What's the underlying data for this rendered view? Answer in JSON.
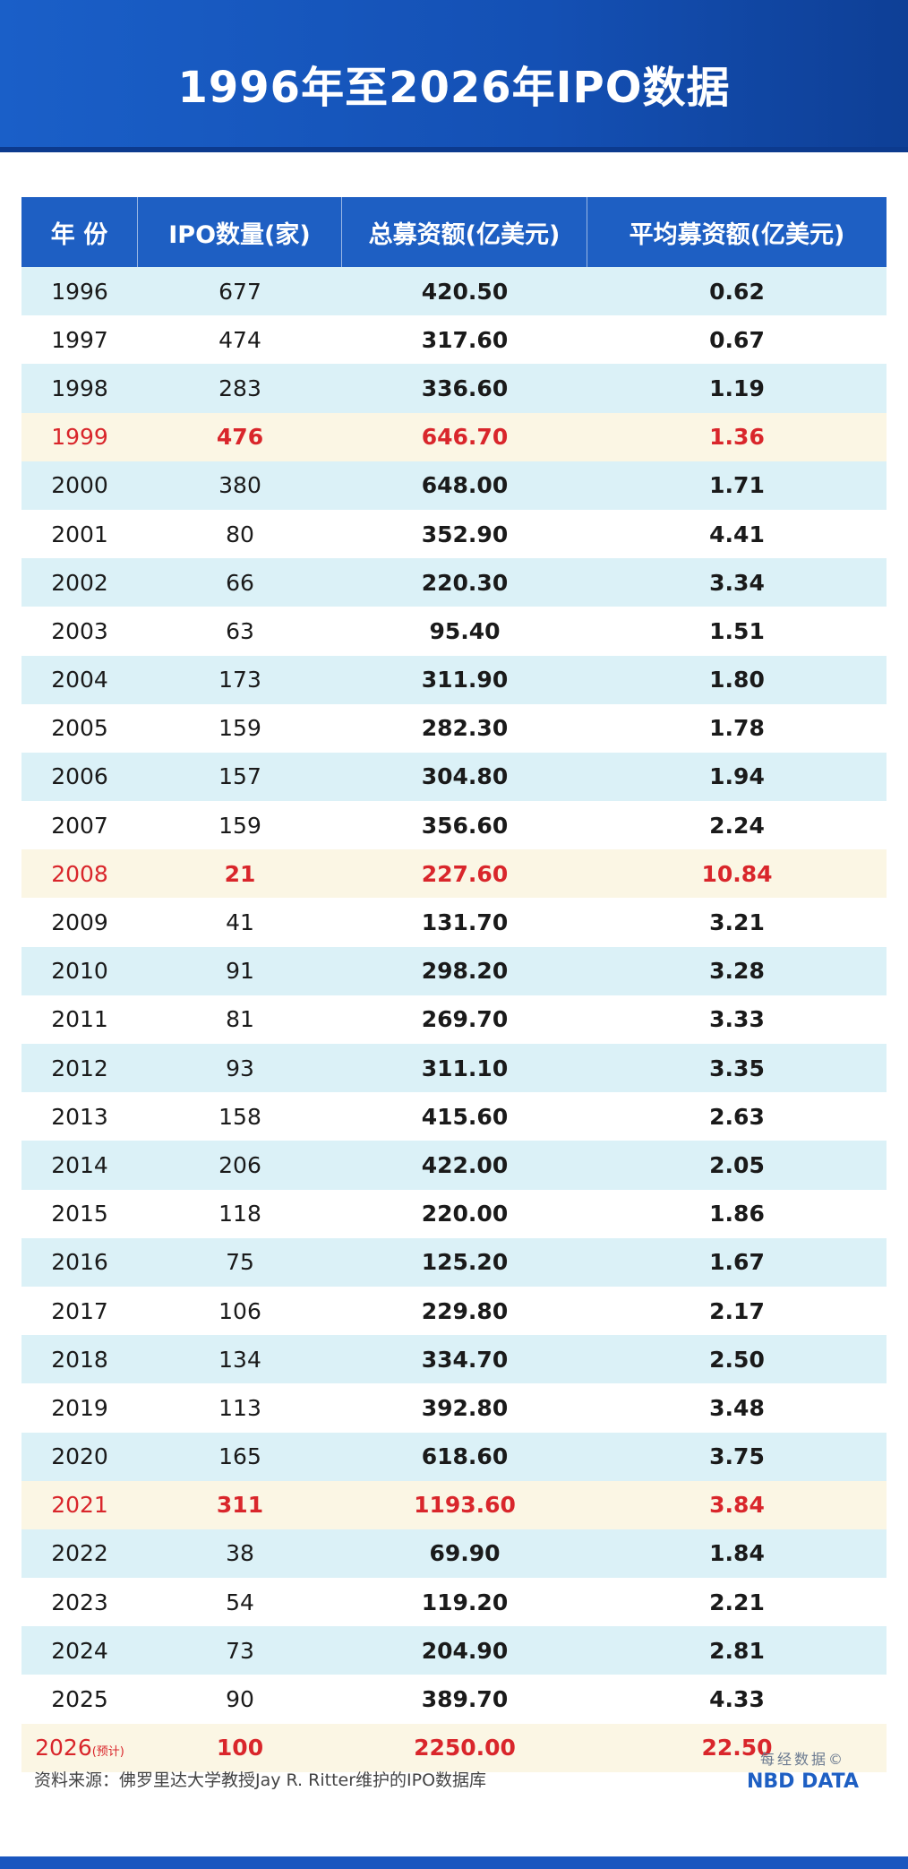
{
  "title": "1996年至2026年IPO数据",
  "headers": [
    "年 份",
    "IPO数量(家)",
    "总募资额(亿美元)",
    "平均募资额(亿美元)"
  ],
  "rows": [
    {
      "year": "1996",
      "count": "677",
      "total": "420.50",
      "avg": "0.62"
    },
    {
      "year": "1997",
      "count": "474",
      "total": "317.60",
      "avg": "0.67"
    },
    {
      "year": "1998",
      "count": "283",
      "total": "336.60",
      "avg": "1.19"
    },
    {
      "year": "1999",
      "count": "476",
      "total": "646.70",
      "avg": "1.36",
      "highlight": true
    },
    {
      "year": "2000",
      "count": "380",
      "total": "648.00",
      "avg": "1.71"
    },
    {
      "year": "2001",
      "count": "80",
      "total": "352.90",
      "avg": "4.41"
    },
    {
      "year": "2002",
      "count": "66",
      "total": "220.30",
      "avg": "3.34"
    },
    {
      "year": "2003",
      "count": "63",
      "total": "95.40",
      "avg": "1.51"
    },
    {
      "year": "2004",
      "count": "173",
      "total": "311.90",
      "avg": "1.80"
    },
    {
      "year": "2005",
      "count": "159",
      "total": "282.30",
      "avg": "1.78"
    },
    {
      "year": "2006",
      "count": "157",
      "total": "304.80",
      "avg": "1.94"
    },
    {
      "year": "2007",
      "count": "159",
      "total": "356.60",
      "avg": "2.24"
    },
    {
      "year": "2008",
      "count": "21",
      "total": "227.60",
      "avg": "10.84",
      "highlight": true
    },
    {
      "year": "2009",
      "count": "41",
      "total": "131.70",
      "avg": "3.21"
    },
    {
      "year": "2010",
      "count": "91",
      "total": "298.20",
      "avg": "3.28"
    },
    {
      "year": "2011",
      "count": "81",
      "total": "269.70",
      "avg": "3.33"
    },
    {
      "year": "2012",
      "count": "93",
      "total": "311.10",
      "avg": "3.35"
    },
    {
      "year": "2013",
      "count": "158",
      "total": "415.60",
      "avg": "2.63"
    },
    {
      "year": "2014",
      "count": "206",
      "total": "422.00",
      "avg": "2.05"
    },
    {
      "year": "2015",
      "count": "118",
      "total": "220.00",
      "avg": "1.86"
    },
    {
      "year": "2016",
      "count": "75",
      "total": "125.20",
      "avg": "1.67"
    },
    {
      "year": "2017",
      "count": "106",
      "total": "229.80",
      "avg": "2.17"
    },
    {
      "year": "2018",
      "count": "134",
      "total": "334.70",
      "avg": "2.50"
    },
    {
      "year": "2019",
      "count": "113",
      "total": "392.80",
      "avg": "3.48"
    },
    {
      "year": "2020",
      "count": "165",
      "total": "618.60",
      "avg": "3.75"
    },
    {
      "year": "2021",
      "count": "311",
      "total": "1193.60",
      "avg": "3.84",
      "highlight": true
    },
    {
      "year": "2022",
      "count": "38",
      "total": "69.90",
      "avg": "1.84"
    },
    {
      "year": "2023",
      "count": "54",
      "total": "119.20",
      "avg": "2.21"
    },
    {
      "year": "2024",
      "count": "73",
      "total": "204.90",
      "avg": "2.81"
    },
    {
      "year": "2025",
      "count": "90",
      "total": "389.70",
      "avg": "4.33"
    },
    {
      "year": "2026",
      "note": "(预计)",
      "count": "100",
      "total": "2250.00",
      "avg": "22.50",
      "highlight": true
    }
  ],
  "source": "资料来源：佛罗里达大学教授Jay R. Ritter维护的IPO数据库",
  "logo": {
    "cn": "每经数据©",
    "en": "NBD DATA"
  },
  "colors": {
    "header": "#1e5fc3",
    "stripe": "#dbf1f7",
    "highlight_text": "#d9262b",
    "highlight_bg": "#fbf6e4"
  },
  "chart_data": {
    "type": "table",
    "title": "1996年至2026年IPO数据",
    "columns": [
      "年 份",
      "IPO数量(家)",
      "总募资额(亿美元)",
      "平均募资额(亿美元)"
    ],
    "rows": [
      [
        "1996",
        677,
        420.5,
        0.62
      ],
      [
        "1997",
        474,
        317.6,
        0.67
      ],
      [
        "1998",
        283,
        336.6,
        1.19
      ],
      [
        "1999",
        476,
        646.7,
        1.36
      ],
      [
        "2000",
        380,
        648.0,
        1.71
      ],
      [
        "2001",
        80,
        352.9,
        4.41
      ],
      [
        "2002",
        66,
        220.3,
        3.34
      ],
      [
        "2003",
        63,
        95.4,
        1.51
      ],
      [
        "2004",
        173,
        311.9,
        1.8
      ],
      [
        "2005",
        159,
        282.3,
        1.78
      ],
      [
        "2006",
        157,
        304.8,
        1.94
      ],
      [
        "2007",
        159,
        356.6,
        2.24
      ],
      [
        "2008",
        21,
        227.6,
        10.84
      ],
      [
        "2009",
        41,
        131.7,
        3.21
      ],
      [
        "2010",
        91,
        298.2,
        3.28
      ],
      [
        "2011",
        81,
        269.7,
        3.33
      ],
      [
        "2012",
        93,
        311.1,
        3.35
      ],
      [
        "2013",
        158,
        415.6,
        2.63
      ],
      [
        "2014",
        206,
        422.0,
        2.05
      ],
      [
        "2015",
        118,
        220.0,
        1.86
      ],
      [
        "2016",
        75,
        125.2,
        1.67
      ],
      [
        "2017",
        106,
        229.8,
        2.17
      ],
      [
        "2018",
        134,
        334.7,
        2.5
      ],
      [
        "2019",
        113,
        392.8,
        3.48
      ],
      [
        "2020",
        165,
        618.6,
        3.75
      ],
      [
        "2021",
        311,
        1193.6,
        3.84
      ],
      [
        "2022",
        38,
        69.9,
        1.84
      ],
      [
        "2023",
        54,
        119.2,
        2.21
      ],
      [
        "2024",
        73,
        204.9,
        2.81
      ],
      [
        "2025",
        90,
        389.7,
        4.33
      ],
      [
        "2026(预计)",
        100,
        2250.0,
        22.5
      ]
    ],
    "highlighted_rows": [
      "1999",
      "2008",
      "2021",
      "2026(预计)"
    ]
  }
}
